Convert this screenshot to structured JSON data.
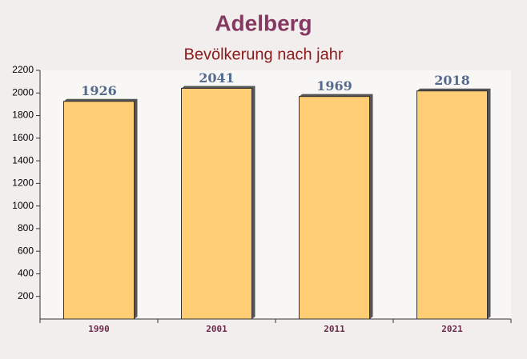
{
  "chart_data": {
    "type": "bar",
    "title": "Adelberg",
    "subtitle": "Bevölkerung nach jahr",
    "categories": [
      "1990",
      "2001",
      "2011",
      "2021"
    ],
    "values": [
      1926,
      2041,
      1969,
      2018
    ],
    "color": "#ffc966",
    "ylim": [
      0,
      2200
    ],
    "yticks": [
      200,
      400,
      600,
      800,
      1000,
      1200,
      1400,
      1600,
      1800,
      2000,
      2200
    ],
    "grid": false
  }
}
